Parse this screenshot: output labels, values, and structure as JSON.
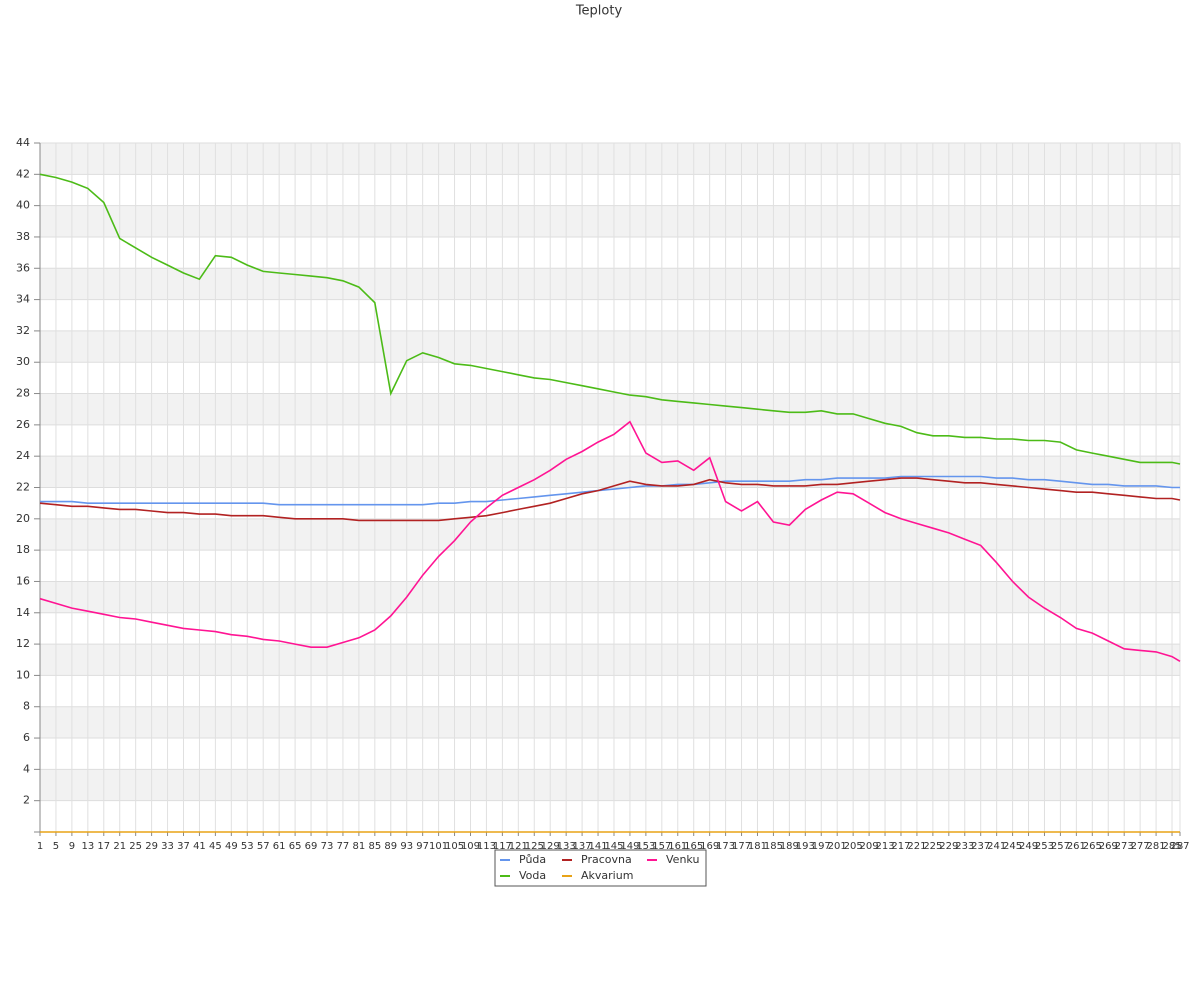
{
  "chart_data": {
    "type": "line",
    "title": "Teploty",
    "x": [
      1,
      5,
      9,
      13,
      17,
      21,
      25,
      29,
      33,
      37,
      41,
      45,
      49,
      53,
      57,
      61,
      65,
      69,
      73,
      77,
      81,
      85,
      89,
      93,
      97,
      101,
      105,
      109,
      113,
      117,
      121,
      125,
      129,
      133,
      137,
      141,
      145,
      149,
      153,
      157,
      161,
      165,
      169,
      173,
      177,
      181,
      185,
      189,
      193,
      197,
      201,
      205,
      209,
      213,
      217,
      221,
      225,
      229,
      233,
      237,
      241,
      245,
      249,
      253,
      257,
      261,
      265,
      269,
      273,
      277,
      281,
      285,
      287
    ],
    "xlim": [
      1,
      287
    ],
    "ylim": [
      0,
      44
    ],
    "yticks": [
      2,
      4,
      6,
      8,
      10,
      12,
      14,
      16,
      18,
      20,
      22,
      24,
      26,
      28,
      30,
      32,
      34,
      36,
      38,
      40,
      42,
      44
    ],
    "grid": true,
    "series": [
      {
        "name": "Půda",
        "color": "#6495ed",
        "values": [
          21.1,
          21.1,
          21.1,
          21.0,
          21.0,
          21.0,
          21.0,
          21.0,
          21.0,
          21.0,
          21.0,
          21.0,
          21.0,
          21.0,
          21.0,
          20.9,
          20.9,
          20.9,
          20.9,
          20.9,
          20.9,
          20.9,
          20.9,
          20.9,
          20.9,
          21.0,
          21.0,
          21.1,
          21.1,
          21.2,
          21.3,
          21.4,
          21.5,
          21.6,
          21.7,
          21.8,
          21.9,
          22.0,
          22.1,
          22.1,
          22.2,
          22.2,
          22.3,
          22.4,
          22.4,
          22.4,
          22.4,
          22.4,
          22.5,
          22.5,
          22.6,
          22.6,
          22.6,
          22.6,
          22.7,
          22.7,
          22.7,
          22.7,
          22.7,
          22.7,
          22.6,
          22.6,
          22.5,
          22.5,
          22.4,
          22.3,
          22.2,
          22.2,
          22.1,
          22.1,
          22.1,
          22.0,
          22.0
        ]
      },
      {
        "name": "Voda",
        "color": "#4cbb17",
        "values": [
          42.0,
          41.8,
          41.5,
          41.1,
          40.2,
          37.9,
          37.3,
          36.7,
          36.2,
          35.7,
          35.3,
          36.8,
          36.7,
          36.2,
          35.8,
          35.7,
          35.6,
          35.5,
          35.4,
          35.2,
          34.8,
          33.8,
          28.0,
          30.1,
          30.6,
          30.3,
          29.9,
          29.8,
          29.6,
          29.4,
          29.2,
          29.0,
          28.9,
          28.7,
          28.5,
          28.3,
          28.1,
          27.9,
          27.8,
          27.6,
          27.5,
          27.4,
          27.3,
          27.2,
          27.1,
          27.0,
          26.9,
          26.8,
          26.8,
          26.9,
          26.7,
          26.7,
          26.4,
          26.1,
          25.9,
          25.5,
          25.3,
          25.3,
          25.2,
          25.2,
          25.1,
          25.1,
          25.0,
          25.0,
          24.9,
          24.4,
          24.2,
          24.0,
          23.8,
          23.6,
          23.6,
          23.6,
          23.5
        ]
      },
      {
        "name": "Pracovna",
        "color": "#b22222",
        "values": [
          21.0,
          20.9,
          20.8,
          20.8,
          20.7,
          20.6,
          20.6,
          20.5,
          20.4,
          20.4,
          20.3,
          20.3,
          20.2,
          20.2,
          20.2,
          20.1,
          20.0,
          20.0,
          20.0,
          20.0,
          19.9,
          19.9,
          19.9,
          19.9,
          19.9,
          19.9,
          20.0,
          20.1,
          20.2,
          20.4,
          20.6,
          20.8,
          21.0,
          21.3,
          21.6,
          21.8,
          22.1,
          22.4,
          22.2,
          22.1,
          22.1,
          22.2,
          22.5,
          22.3,
          22.2,
          22.2,
          22.1,
          22.1,
          22.1,
          22.2,
          22.2,
          22.3,
          22.4,
          22.5,
          22.6,
          22.6,
          22.5,
          22.4,
          22.3,
          22.3,
          22.2,
          22.1,
          22.0,
          21.9,
          21.8,
          21.7,
          21.7,
          21.6,
          21.5,
          21.4,
          21.3,
          21.3,
          21.2
        ]
      },
      {
        "name": "Akvarium",
        "color": "#e8a317",
        "values": [
          0,
          0,
          0,
          0,
          0,
          0,
          0,
          0,
          0,
          0,
          0,
          0,
          0,
          0,
          0,
          0,
          0,
          0,
          0,
          0,
          0,
          0,
          0,
          0,
          0,
          0,
          0,
          0,
          0,
          0,
          0,
          0,
          0,
          0,
          0,
          0,
          0,
          0,
          0,
          0,
          0,
          0,
          0,
          0,
          0,
          0,
          0,
          0,
          0,
          0,
          0,
          0,
          0,
          0,
          0,
          0,
          0,
          0,
          0,
          0,
          0,
          0,
          0,
          0,
          0,
          0,
          0,
          0,
          0,
          0,
          0,
          0,
          0
        ]
      },
      {
        "name": "Venku",
        "color": "#ff1493",
        "values": [
          14.9,
          14.6,
          14.3,
          14.1,
          13.9,
          13.7,
          13.6,
          13.4,
          13.2,
          13.0,
          12.9,
          12.8,
          12.6,
          12.5,
          12.3,
          12.2,
          12.0,
          11.8,
          11.8,
          12.1,
          12.4,
          12.9,
          13.8,
          15.0,
          16.4,
          17.6,
          18.6,
          19.8,
          20.7,
          21.5,
          22.0,
          22.5,
          23.1,
          23.8,
          24.3,
          24.9,
          25.4,
          26.2,
          24.2,
          23.6,
          23.7,
          23.1,
          23.9,
          21.1,
          20.5,
          21.1,
          19.8,
          19.6,
          20.6,
          21.2,
          21.7,
          21.6,
          21.0,
          20.4,
          20.0,
          19.7,
          19.4,
          19.1,
          18.7,
          18.3,
          17.2,
          16.0,
          15.0,
          14.3,
          13.7,
          13.0,
          12.7,
          12.2,
          11.7,
          11.6,
          11.5,
          11.2,
          10.9
        ]
      }
    ]
  }
}
